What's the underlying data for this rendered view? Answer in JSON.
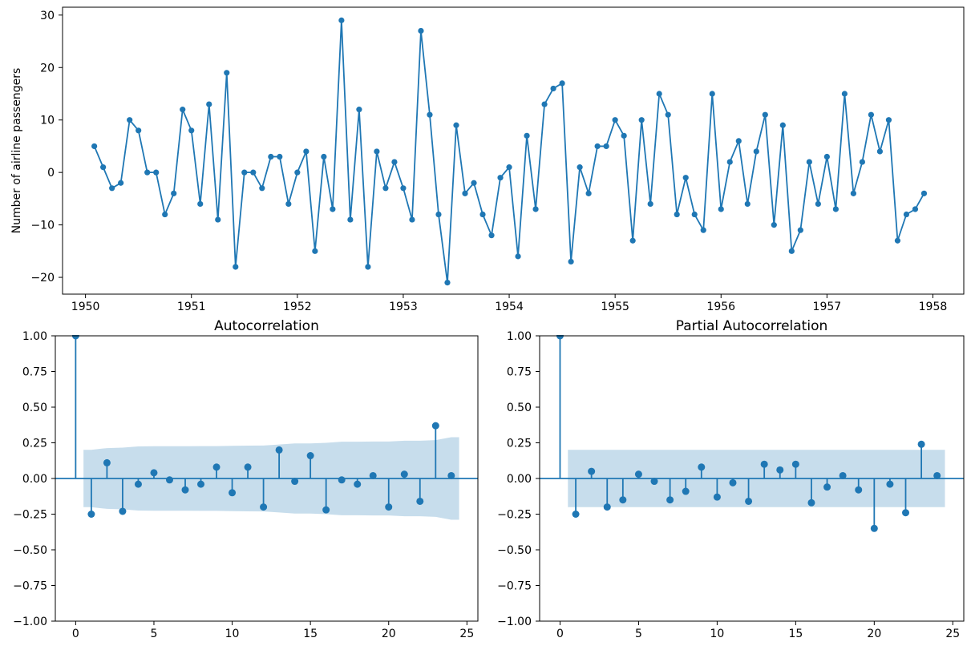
{
  "figure": {
    "background_color": "#ffffff",
    "line_color": "#1f77b4",
    "band_color": "#1f77b4",
    "band_opacity": 0.25,
    "axis_color": "#000000"
  },
  "chart_data": [
    {
      "id": "timeseries",
      "type": "line",
      "ylabel": "Number of airline passengers",
      "x_description": "monthly, Feb 1950 - Dec 1957",
      "x_first_month_index": 1,
      "values": [
        5,
        1,
        -3,
        -2,
        10,
        8,
        0,
        0,
        -8,
        -4,
        12,
        8,
        -6,
        13,
        -9,
        19,
        -18,
        0,
        0,
        -3,
        3,
        3,
        -6,
        0,
        4,
        -15,
        3,
        -7,
        29,
        -9,
        12,
        -18,
        4,
        -3,
        2,
        -3,
        -9,
        27,
        11,
        -8,
        -21,
        9,
        -4,
        -2,
        -8,
        -12,
        -1,
        1,
        -16,
        7,
        -7,
        13,
        16,
        17,
        -17,
        1,
        -4,
        5,
        5,
        10,
        7,
        -13,
        10,
        -6,
        15,
        11,
        -8,
        -1,
        -8,
        -11,
        15,
        -7,
        2,
        6,
        -6,
        4,
        11,
        -10,
        9,
        -15,
        -11,
        2,
        -6,
        3,
        -7,
        15,
        -4,
        2,
        11,
        4,
        10,
        -13,
        -8,
        -7,
        -4
      ],
      "xlim": [
        -2.6,
        99.5
      ],
      "ylim": [
        -23.2,
        31.5
      ],
      "x_ticks": [
        {
          "v": 0,
          "label": "1950"
        },
        {
          "v": 12,
          "label": "1951"
        },
        {
          "v": 24,
          "label": "1952"
        },
        {
          "v": 36,
          "label": "1953"
        },
        {
          "v": 48,
          "label": "1954"
        },
        {
          "v": 60,
          "label": "1955"
        },
        {
          "v": 72,
          "label": "1956"
        },
        {
          "v": 84,
          "label": "1957"
        },
        {
          "v": 96,
          "label": "1958"
        }
      ],
      "y_ticks": [
        {
          "v": 30,
          "label": "30"
        },
        {
          "v": 20,
          "label": "20"
        },
        {
          "v": 10,
          "label": "10"
        },
        {
          "v": 0,
          "label": "0"
        },
        {
          "v": -10,
          "label": "−10"
        },
        {
          "v": -20,
          "label": "−20"
        }
      ],
      "grid": false,
      "legend": null
    },
    {
      "id": "acf",
      "type": "stem",
      "title": "Autocorrelation",
      "lags": [
        0,
        1,
        2,
        3,
        4,
        5,
        6,
        7,
        8,
        9,
        10,
        11,
        12,
        13,
        14,
        15,
        16,
        17,
        18,
        19,
        20,
        21,
        22,
        23,
        24
      ],
      "values": [
        1.0,
        -0.25,
        0.11,
        -0.23,
        -0.04,
        0.04,
        -0.01,
        -0.08,
        -0.04,
        0.08,
        -0.1,
        0.08,
        -0.2,
        0.2,
        -0.02,
        0.16,
        -0.22,
        -0.01,
        -0.04,
        0.02,
        -0.2,
        0.03,
        -0.16,
        0.37,
        0.02
      ],
      "conf_upper": [
        0.201,
        0.213,
        0.216,
        0.225,
        0.226,
        0.226,
        0.226,
        0.227,
        0.227,
        0.229,
        0.23,
        0.231,
        0.238,
        0.246,
        0.246,
        0.25,
        0.258,
        0.258,
        0.259,
        0.259,
        0.265,
        0.265,
        0.269,
        0.289
      ],
      "band_range_lags": [
        0.5,
        24.5
      ],
      "xlim": [
        -1.3,
        25.7
      ],
      "ylim": [
        -1.0,
        1.0
      ],
      "x_ticks": [
        {
          "v": 0,
          "label": "0"
        },
        {
          "v": 5,
          "label": "5"
        },
        {
          "v": 10,
          "label": "10"
        },
        {
          "v": 15,
          "label": "15"
        },
        {
          "v": 20,
          "label": "20"
        },
        {
          "v": 25,
          "label": "25"
        }
      ],
      "y_ticks": [
        {
          "v": 1.0,
          "label": "1.00"
        },
        {
          "v": 0.75,
          "label": "0.75"
        },
        {
          "v": 0.5,
          "label": "0.50"
        },
        {
          "v": 0.25,
          "label": "0.25"
        },
        {
          "v": 0.0,
          "label": "0.00"
        },
        {
          "v": -0.25,
          "label": "−0.25"
        },
        {
          "v": -0.5,
          "label": "−0.50"
        },
        {
          "v": -0.75,
          "label": "−0.75"
        },
        {
          "v": -1.0,
          "label": "−1.00"
        }
      ],
      "grid": false,
      "legend": null
    },
    {
      "id": "pacf",
      "type": "stem",
      "title": "Partial Autocorrelation",
      "lags": [
        0,
        1,
        2,
        3,
        4,
        5,
        6,
        7,
        8,
        9,
        10,
        11,
        12,
        13,
        14,
        15,
        16,
        17,
        18,
        19,
        20,
        21,
        22,
        23,
        24
      ],
      "values": [
        1.0,
        -0.25,
        0.05,
        -0.2,
        -0.15,
        0.03,
        -0.02,
        -0.15,
        -0.09,
        0.08,
        -0.13,
        -0.03,
        -0.16,
        0.1,
        0.06,
        0.1,
        -0.17,
        -0.06,
        0.02,
        -0.08,
        -0.35,
        -0.04,
        -0.24,
        0.24,
        0.02
      ],
      "conf_upper": 0.201,
      "band_range_lags": [
        0.5,
        24.5
      ],
      "xlim": [
        -1.3,
        25.7
      ],
      "ylim": [
        -1.0,
        1.0
      ],
      "x_ticks": [
        {
          "v": 0,
          "label": "0"
        },
        {
          "v": 5,
          "label": "5"
        },
        {
          "v": 10,
          "label": "10"
        },
        {
          "v": 15,
          "label": "15"
        },
        {
          "v": 20,
          "label": "20"
        },
        {
          "v": 25,
          "label": "25"
        }
      ],
      "y_ticks": [
        {
          "v": 1.0,
          "label": "1.00"
        },
        {
          "v": 0.75,
          "label": "0.75"
        },
        {
          "v": 0.5,
          "label": "0.50"
        },
        {
          "v": 0.25,
          "label": "0.25"
        },
        {
          "v": 0.0,
          "label": "0.00"
        },
        {
          "v": -0.25,
          "label": "−0.25"
        },
        {
          "v": -0.5,
          "label": "−0.50"
        },
        {
          "v": -0.75,
          "label": "−0.75"
        },
        {
          "v": -1.0,
          "label": "−1.00"
        }
      ],
      "grid": false,
      "legend": null
    }
  ]
}
